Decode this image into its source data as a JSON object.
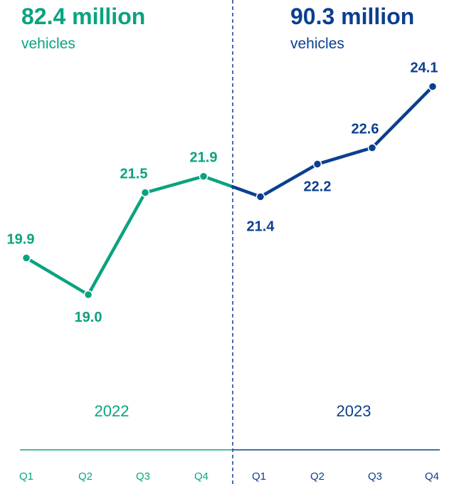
{
  "colors": {
    "y2022": "#0aa37f",
    "y2023": "#0b3f8f"
  },
  "chart_data": {
    "type": "line",
    "ylabel": "",
    "xlabel": "",
    "ylim": [
      17.5,
      25.0
    ],
    "panels": [
      {
        "year": "2022",
        "total": "82.4 million",
        "unit": "vehicles",
        "categories": [
          "Q1",
          "Q2",
          "Q3",
          "Q4"
        ],
        "values": [
          19.9,
          19.0,
          21.5,
          21.9
        ],
        "labels": [
          "19.9",
          "19.0",
          "21.5",
          "21.9"
        ]
      },
      {
        "year": "2023",
        "total": "90.3 million",
        "unit": "vehicles",
        "categories": [
          "Q1",
          "Q2",
          "Q3",
          "Q4"
        ],
        "values": [
          21.4,
          22.2,
          22.6,
          24.1
        ],
        "labels": [
          "21.4",
          "22.2",
          "22.6",
          "24.1"
        ]
      }
    ]
  }
}
